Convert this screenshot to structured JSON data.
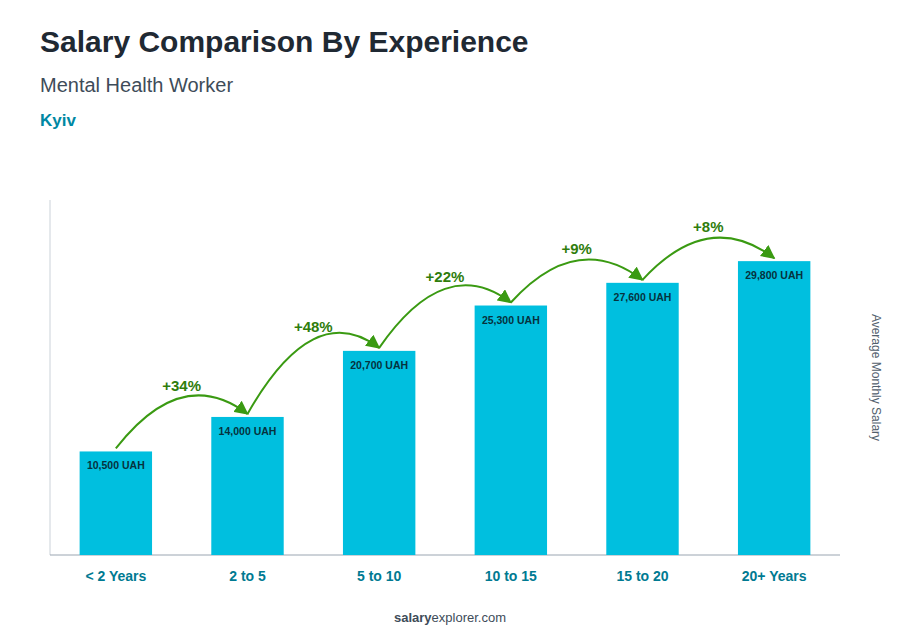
{
  "chart_data": {
    "type": "bar",
    "title": "Salary Comparison By Experience",
    "subtitle": "Mental Health Worker",
    "city": "Kyiv",
    "ylabel": "Average Monthly Salary",
    "categories": [
      "< 2 Years",
      "2 to 5",
      "5 to 10",
      "10 to 15",
      "15 to 20",
      "20+ Years"
    ],
    "values": [
      10500,
      14000,
      20700,
      25300,
      27600,
      29800
    ],
    "value_labels": [
      "10,500 UAH",
      "14,000 UAH",
      "20,700 UAH",
      "25,300 UAH",
      "27,600 UAH",
      "29,800 UAH"
    ],
    "annotations": [
      "+34%",
      "+48%",
      "+22%",
      "+9%",
      "+8%"
    ],
    "footer": [
      "salary",
      "explorer.com"
    ],
    "color": "#00BFDF",
    "ylim": [
      0,
      36000
    ],
    "grid": false,
    "data_labels": true,
    "tick_labels": "x"
  }
}
